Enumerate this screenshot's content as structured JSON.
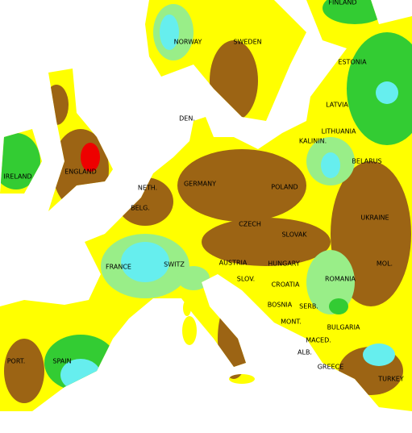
{
  "labels": [
    "FINLAND",
    "NORWAY",
    "SWEDEN",
    "ESTONIA",
    "LATVIA",
    "DEN.",
    "LITHUANIA",
    "KALININ.",
    "BELARUS",
    "IRELAND",
    "ENGLAND",
    "NETH.",
    "GERMANY",
    "POLAND",
    "BELG.",
    "CZECH",
    "SLOVAK",
    "UKRAINE",
    "FRANCE",
    "SWITZ",
    "AUSTRIA",
    "HUNGARY",
    "MOL.",
    "ROMANIA",
    "SLOV.",
    "CROATIA",
    "BOSNIA",
    "SERB.",
    "BULGARIA",
    "MONT.",
    "MACED.",
    "ALB.",
    "GREECE",
    "TURKEY",
    "PORT.",
    "SPAIN"
  ]
}
